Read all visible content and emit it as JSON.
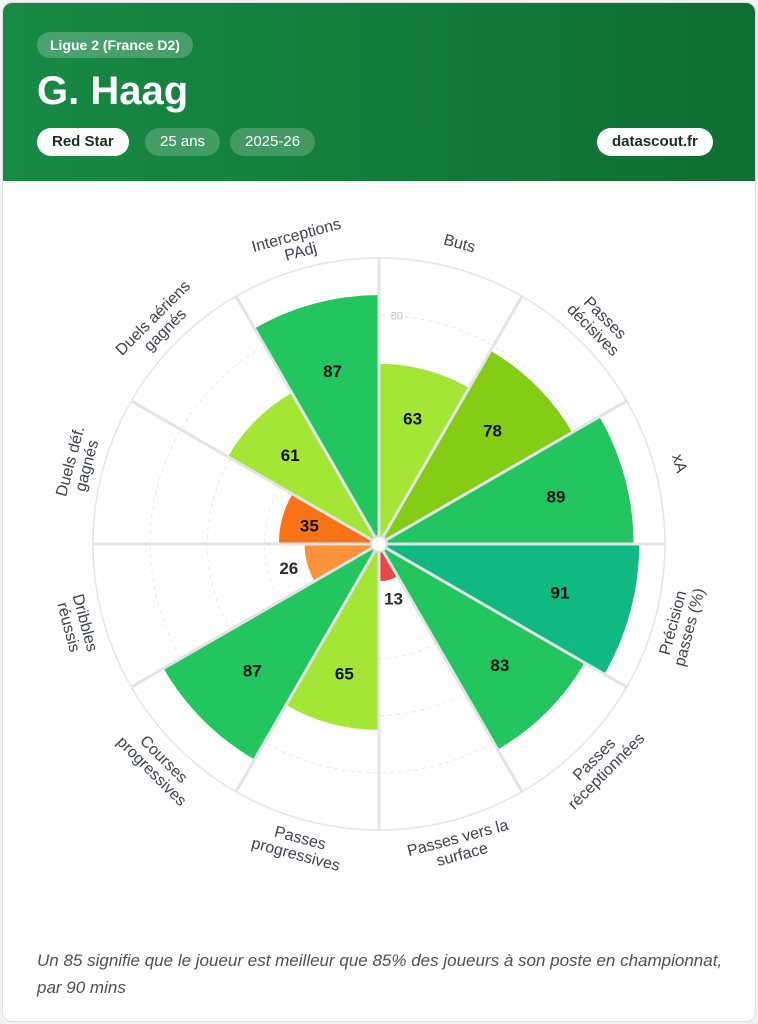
{
  "header": {
    "league": "Ligue 2 (France D2)",
    "player_name": "G. Haag",
    "club": "Red Star",
    "age": "25 ans",
    "season": "2025-26",
    "brand": "datascout.fr"
  },
  "footnote": "Un 85 signifie que le joueur est meilleur que 85% des joueurs à son poste en championnat, par 90 mins",
  "colors": {
    "header_bg": "#127a3a",
    "tier_elite": "#10b981",
    "tier_high": "#22c55e",
    "tier_good": "#84cc16",
    "tier_mid": "#a3e635",
    "tier_low": "#fb923c",
    "tier_poor": "#f97316",
    "tier_bad": "#ef4444"
  },
  "chart_data": {
    "type": "radar",
    "scale_labels": [
      "80"
    ],
    "rlim": [
      0,
      100
    ],
    "categories": [
      [
        "Buts"
      ],
      [
        "Passes",
        "décisives"
      ],
      [
        "xA"
      ],
      [
        "Précision",
        "passes (%)"
      ],
      [
        "Passes",
        "réceptionnées"
      ],
      [
        "Passes vers la",
        "surface"
      ],
      [
        "Passes",
        "progressives"
      ],
      [
        "Courses",
        "progressives"
      ],
      [
        "Dribbles",
        "réussis"
      ],
      [
        "Duels déf.",
        "gagnés"
      ],
      [
        "Duels aériens",
        "gagnés"
      ],
      [
        "Interceptions",
        "PAdj"
      ]
    ],
    "values": [
      63,
      78,
      89,
      91,
      83,
      13,
      65,
      87,
      26,
      35,
      61,
      87
    ],
    "colors": [
      "#a3e635",
      "#84cc16",
      "#22c55e",
      "#10b981",
      "#22c55e",
      "#ef4444",
      "#a3e635",
      "#22c55e",
      "#fb923c",
      "#f97316",
      "#a3e635",
      "#22c55e"
    ]
  }
}
